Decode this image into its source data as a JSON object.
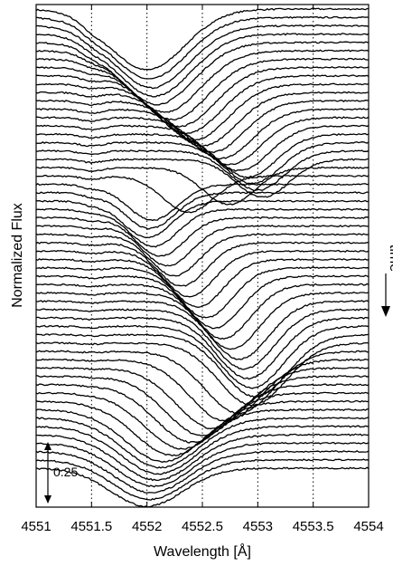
{
  "chart_data": {
    "type": "line",
    "title": "",
    "xlabel": "Wavelength [Å]",
    "ylabel": "Normalized Flux",
    "time_label": "time",
    "scale_bar_label": "0.25",
    "scale_bar_value": 0.25,
    "xlim": [
      4551,
      4554
    ],
    "x_ticks": [
      4551,
      4551.5,
      4552,
      4552.5,
      4553,
      4553.5,
      4554
    ],
    "x_tick_labels": [
      "4551",
      "4551.5",
      "4552",
      "4552.5",
      "4553",
      "4553.5",
      "4554"
    ],
    "reference_lines_x": [
      4551.5,
      4552,
      4552.5,
      4553,
      4553.5
    ],
    "grid": false,
    "spectrum_count": 56,
    "line_depth_range": [
      0.15,
      0.26
    ],
    "line_center_range_angstrom": [
      4552.0,
      4553.05
    ],
    "spectrum_offset": 0.025,
    "color": "#000000"
  }
}
